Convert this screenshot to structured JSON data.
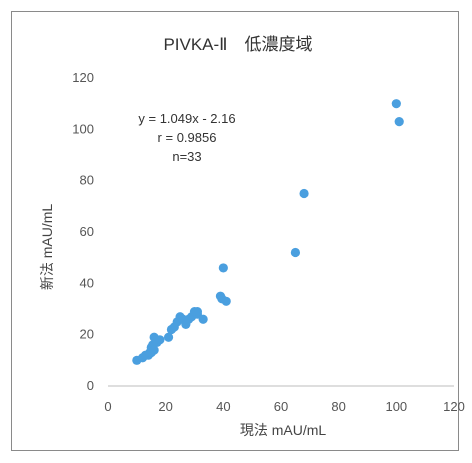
{
  "chart_data": {
    "type": "scatter",
    "title": "PIVKA-Ⅱ　低濃度域",
    "xlabel": "現法 mAU/mL",
    "ylabel": "新法 mAU/mL",
    "xlim": [
      0,
      120
    ],
    "ylim": [
      0,
      120
    ],
    "x_ticks": [
      "0",
      "20",
      "40",
      "60",
      "80",
      "100",
      "120"
    ],
    "y_ticks": [
      "0",
      "20",
      "40",
      "60",
      "80",
      "100",
      "120"
    ],
    "grid": false,
    "legend": "none",
    "annotation": {
      "line1": "y = 1.049x - 2.16",
      "line2": "r = 0.9856",
      "line3": "n=33"
    },
    "marker_color": "#4a9fdf",
    "points": [
      {
        "x": 10,
        "y": 10
      },
      {
        "x": 12,
        "y": 11
      },
      {
        "x": 13,
        "y": 12
      },
      {
        "x": 14,
        "y": 12
      },
      {
        "x": 14.5,
        "y": 13
      },
      {
        "x": 15,
        "y": 13
      },
      {
        "x": 15,
        "y": 15
      },
      {
        "x": 15.5,
        "y": 16
      },
      {
        "x": 16,
        "y": 14
      },
      {
        "x": 16,
        "y": 19
      },
      {
        "x": 17,
        "y": 17
      },
      {
        "x": 18,
        "y": 18
      },
      {
        "x": 21,
        "y": 19
      },
      {
        "x": 22,
        "y": 22
      },
      {
        "x": 23,
        "y": 23
      },
      {
        "x": 24,
        "y": 25
      },
      {
        "x": 25,
        "y": 27
      },
      {
        "x": 26,
        "y": 26
      },
      {
        "x": 27,
        "y": 24
      },
      {
        "x": 28,
        "y": 26
      },
      {
        "x": 29,
        "y": 27
      },
      {
        "x": 30,
        "y": 29
      },
      {
        "x": 31,
        "y": 28
      },
      {
        "x": 31,
        "y": 29
      },
      {
        "x": 33,
        "y": 26
      },
      {
        "x": 39,
        "y": 35
      },
      {
        "x": 39.5,
        "y": 34
      },
      {
        "x": 40,
        "y": 46
      },
      {
        "x": 41,
        "y": 33
      },
      {
        "x": 65,
        "y": 52
      },
      {
        "x": 68,
        "y": 75
      },
      {
        "x": 100,
        "y": 110
      },
      {
        "x": 101,
        "y": 103
      }
    ]
  }
}
